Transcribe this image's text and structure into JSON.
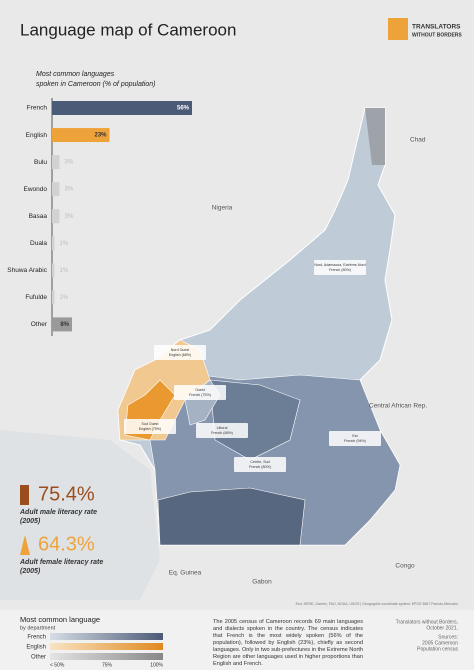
{
  "header": {
    "title": "Language map of Cameroon",
    "logo": [
      "TRANSLATORS",
      "WITHOUT BORDERS"
    ]
  },
  "chart_data": {
    "type": "bar",
    "orientation": "horizontal",
    "title": [
      "Most common languages",
      "spoken in Cameroon (% of population)"
    ],
    "categories": [
      "French",
      "English",
      "Bulu",
      "Ewondo",
      "Basaa",
      "Duala",
      "Shuwa Arabic",
      "Fufulde",
      "Other"
    ],
    "values": [
      56,
      23,
      3,
      3,
      3,
      1,
      1,
      1,
      8
    ],
    "value_labels": [
      "56%",
      "23%",
      "3%",
      "3%",
      "3%",
      "1%",
      "1%",
      "1%",
      "8%"
    ],
    "colors": [
      "#4b5a77",
      "#eea33a",
      "#d2d2d2",
      "#d2d2d2",
      "#d2d2d2",
      "#d2d2d2",
      "#d2d2d2",
      "#d2d2d2",
      "#9a9a9a"
    ]
  },
  "map": {
    "countries": [
      "Chad",
      "Nigeria",
      "Central African Rep.",
      "Eq. Guinea",
      "Gabon",
      "Congo"
    ],
    "regions": [
      [
        "Nord, Adamaoua, Extrême-Nord",
        "French (80%)"
      ],
      [
        "Nord Ouest",
        "English (68%)"
      ],
      [
        "Ouest",
        "French (75%)"
      ],
      [
        "Sud Ouest",
        "English (75%)"
      ],
      [
        "Littoral",
        "French (68%)"
      ],
      [
        "Centre, Sud",
        "French (80%)"
      ],
      [
        "Est",
        "French (94%)"
      ]
    ],
    "attribution": "Esri, HERE, Garmin, FAO, NOAA, USGS | Geographic coordinate system: EPSG 3857 Pseudo-Mercator"
  },
  "literacy": [
    {
      "figure": "75.4%",
      "label": [
        "Adult male literacy rate",
        "(2005)"
      ]
    },
    {
      "figure": "64.3%",
      "label": [
        "Adult female literacy rate",
        "(2005)"
      ]
    }
  ],
  "legend": {
    "title": "Most common language",
    "subtitle": "by department",
    "items": [
      "French",
      "English",
      "Other"
    ],
    "scale": [
      "< 50%",
      "75%",
      "100%"
    ]
  },
  "note": "The 2005 census of Cameroon records 69 main languages and dialects spoken in the country. The census indicates that French is the most widely spoken (56% of the population), followed by English (23%), chiefly as second languages. Only in two sub-prefectures in the Extreme North Region are other languages used in higher proportions than English and French.",
  "credits": [
    "Translators without Borders,",
    "October 2021.",
    "Sources:",
    "2005 Cameroon",
    "Population census"
  ]
}
